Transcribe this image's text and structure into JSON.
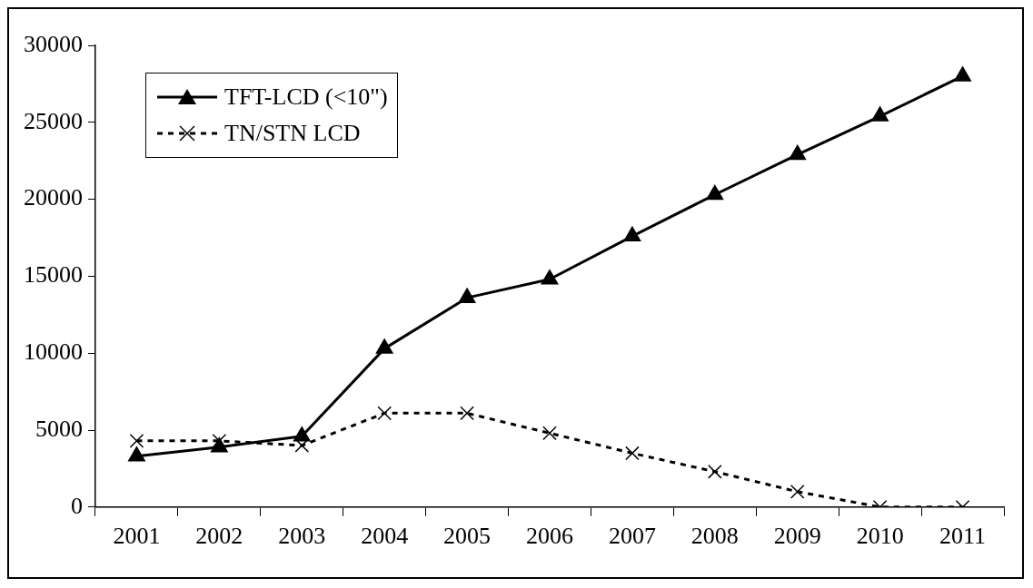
{
  "chart_data": {
    "type": "line",
    "categories": [
      "2001",
      "2002",
      "2003",
      "2004",
      "2005",
      "2006",
      "2007",
      "2008",
      "2009",
      "2010",
      "2011"
    ],
    "series": [
      {
        "name": "TFT-LCD (<10\")",
        "color": "#000000",
        "marker": "triangle",
        "line_style": "solid",
        "values": [
          3300,
          3900,
          4600,
          10300,
          13600,
          14800,
          17600,
          20300,
          22900,
          25400,
          28000
        ]
      },
      {
        "name": "TN/STN LCD",
        "color": "#000000",
        "marker": "cross",
        "line_style": "dashed",
        "values": [
          4300,
          4300,
          4000,
          6100,
          6100,
          4800,
          3500,
          2300,
          1000,
          0,
          0
        ]
      }
    ],
    "ylim": [
      0,
      30000
    ],
    "yticks": [
      0,
      5000,
      10000,
      15000,
      20000,
      25000,
      30000
    ],
    "grid": false,
    "legend": "top left"
  }
}
